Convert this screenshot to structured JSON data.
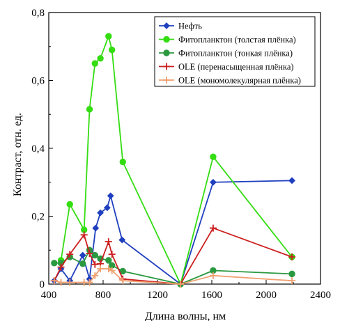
{
  "chart_data": {
    "type": "line",
    "title": "",
    "xlabel": "Длина волны, нм",
    "ylabel": "Контраст, отн. ед.",
    "xlim": [
      400,
      2400
    ],
    "ylim": [
      0,
      0.8
    ],
    "xticks": [
      400,
      800,
      1200,
      1600,
      2000,
      2400
    ],
    "xtick_labels": [
      "400",
      "800",
      "1200",
      "1600",
      "2000",
      "2400"
    ],
    "yticks": [
      0,
      0.2,
      0.4,
      0.6,
      0.8
    ],
    "ytick_labels": [
      "0",
      "0,2",
      "0,4",
      "0,6",
      "0,8"
    ],
    "grid": false,
    "legend_position": "top-right",
    "series": [
      {
        "name": "Нефть",
        "color": "#1f3fbf",
        "marker": "diamond",
        "x": [
          440,
          490,
          555,
          650,
          700,
          745,
          780,
          830,
          855,
          940,
          1370,
          1610,
          2190
        ],
        "y": [
          0.01,
          0.045,
          0.01,
          0.085,
          0.015,
          0.165,
          0.21,
          0.225,
          0.26,
          0.13,
          0.0,
          0.3,
          0.305
        ]
      },
      {
        "name": "Фитопланктон (толстая плёнка)",
        "color": "#33dd11",
        "marker": "circle",
        "x": [
          490,
          555,
          660,
          700,
          740,
          780,
          840,
          865,
          945,
          1370,
          1610,
          2190
        ],
        "y": [
          0.07,
          0.235,
          0.16,
          0.515,
          0.65,
          0.665,
          0.73,
          0.69,
          0.36,
          0.0,
          0.375,
          0.08
        ]
      },
      {
        "name": "Фитопланктон (тонкая плёнка)",
        "color": "#2a9940",
        "marker": "circle",
        "x": [
          440,
          490,
          555,
          650,
          700,
          740,
          780,
          840,
          865,
          945,
          1370,
          1610,
          2190
        ],
        "y": [
          0.062,
          0.062,
          0.08,
          0.06,
          0.1,
          0.085,
          0.075,
          0.07,
          0.055,
          0.038,
          0.0,
          0.04,
          0.03
        ]
      },
      {
        "name": "OLE (перенасыщенная плёнка)",
        "color": "#cc2020",
        "marker": "plus",
        "x": [
          440,
          490,
          555,
          660,
          700,
          740,
          780,
          840,
          865,
          945,
          1370,
          1610,
          2190
        ],
        "y": [
          0.01,
          0.05,
          0.088,
          0.145,
          0.09,
          0.058,
          0.06,
          0.125,
          0.088,
          0.015,
          0.0,
          0.165,
          0.08
        ]
      },
      {
        "name": "OLE (мономолекулярная плёнка)",
        "color": "#f0a070",
        "marker": "plus",
        "x": [
          440,
          490,
          555,
          660,
          700,
          740,
          780,
          840,
          865,
          945,
          1370,
          1610,
          2190
        ],
        "y": [
          0.01,
          0.005,
          0.005,
          0.005,
          0.005,
          0.025,
          0.045,
          0.045,
          0.04,
          0.01,
          0.0,
          0.025,
          0.01
        ]
      }
    ]
  }
}
